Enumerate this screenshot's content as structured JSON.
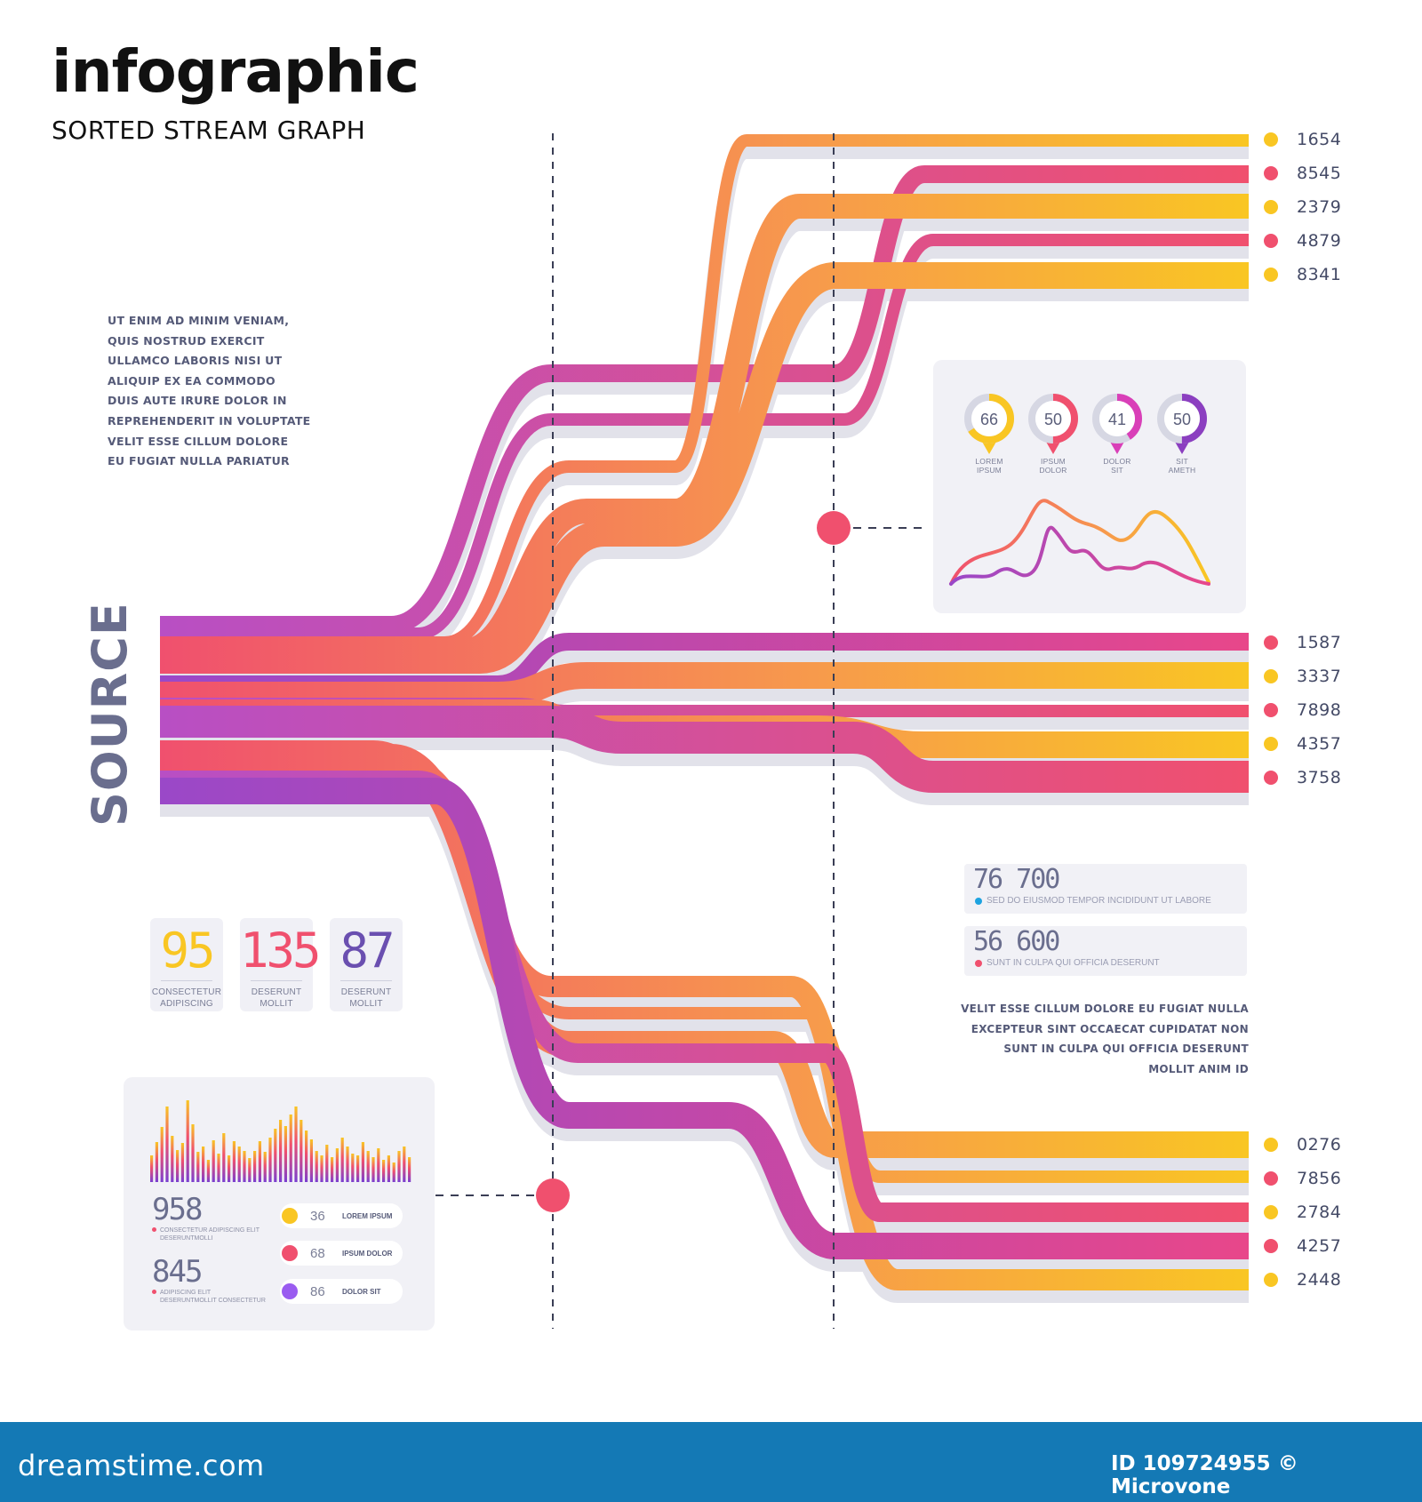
{
  "header": {
    "title": "infographic",
    "subtitle": "SORTED STREAM GRAPH"
  },
  "intro_text": [
    "UT ENIM AD MINIM VENIAM,",
    "QUIS NOSTRUD EXERCIT",
    "ULLAMCO LABORIS NISI UT",
    "ALIQUIP EX EA COMMODO",
    "DUIS AUTE IRURE DOLOR IN",
    "REPREHENDERIT IN VOLUPTATE",
    "VELIT ESSE CILLUM DOLORE",
    "EU FUGIAT NULLA PARIATUR"
  ],
  "source_label": "SOURCE",
  "colors": {
    "yellow": "#f9c623",
    "pink": "#f0506e",
    "purple": "#9a48c8",
    "magenta": "#d93fb8",
    "orange": "#f79a4c",
    "text_gray": "#6a6e8e",
    "footer": "#1479b5"
  },
  "legend_groups": [
    {
      "items": [
        {
          "value": "1654",
          "color": "yellow"
        },
        {
          "value": "8545",
          "color": "pink"
        },
        {
          "value": "2379",
          "color": "yellow"
        },
        {
          "value": "4879",
          "color": "pink"
        },
        {
          "value": "8341",
          "color": "yellow"
        }
      ]
    },
    {
      "items": [
        {
          "value": "1587",
          "color": "pink"
        },
        {
          "value": "3337",
          "color": "yellow"
        },
        {
          "value": "7898",
          "color": "pink"
        },
        {
          "value": "4357",
          "color": "yellow"
        },
        {
          "value": "3758",
          "color": "pink"
        }
      ]
    },
    {
      "items": [
        {
          "value": "0276",
          "color": "yellow"
        },
        {
          "value": "7856",
          "color": "pink"
        },
        {
          "value": "2784",
          "color": "yellow"
        },
        {
          "value": "4257",
          "color": "pink"
        },
        {
          "value": "2448",
          "color": "yellow"
        }
      ]
    }
  ],
  "gauges": [
    {
      "value": "66",
      "fraction": 0.66,
      "label": [
        "LOREM",
        "IPSUM"
      ],
      "color": "#f9c623"
    },
    {
      "value": "50",
      "fraction": 0.5,
      "label": [
        "IPSUM",
        "DOLOR"
      ],
      "color": "#f0506e"
    },
    {
      "value": "41",
      "fraction": 0.41,
      "label": [
        "DOLOR",
        "SIT"
      ],
      "color": "#d93fb8"
    },
    {
      "value": "50",
      "fraction": 0.5,
      "label": [
        "SIT",
        "AMETH"
      ],
      "color": "#8b3fc0"
    }
  ],
  "kpis": [
    {
      "value": "76 700",
      "caption": "SED DO EIUSMOD TEMPOR INCIDIDUNT UT LABORE",
      "color": "#1ea3e0"
    },
    {
      "value": "56 600",
      "caption": "SUNT IN CULPA QUI OFFICIA DESERUNT",
      "color": "#f0506e"
    }
  ],
  "right_text": [
    "VELIT ESSE CILLUM DOLORE EU FUGIAT NULLA",
    "EXCEPTEUR SINT OCCAECAT CUPIDATAT NON",
    "SUNT IN CULPA QUI OFFICIA DESERUNT",
    "MOLLIT ANIM ID"
  ],
  "stat_cards": [
    {
      "value": "95",
      "label": [
        "CONSECTETUR",
        "ADIPISCING"
      ],
      "color": "#f9c623"
    },
    {
      "value": "135",
      "label": [
        "DESERUNT",
        "MOLLIT"
      ],
      "color": "#f0506e"
    },
    {
      "value": "87",
      "label": [
        "DESERUNT",
        "MOLLIT"
      ],
      "color": "#6a4fb0"
    }
  ],
  "bottom_panel": {
    "metrics": [
      {
        "value": "958",
        "caption": [
          "CONSECTETUR ADIPISCING ELIT",
          "DESERUNTMOLLI"
        ]
      },
      {
        "value": "845",
        "caption": [
          "ADIPISCING ELIT",
          "DESERUNTMOLLIT CONSECTETUR"
        ]
      }
    ],
    "pills": [
      {
        "value": "36",
        "label": "LOREM IPSUM",
        "color": "#f9c623"
      },
      {
        "value": "68",
        "label": "IPSUM DOLOR",
        "color": "#f0506e"
      },
      {
        "value": "86",
        "label": "DOLOR SIT",
        "color": "#9a5cf0"
      }
    ]
  },
  "footer": {
    "brand": "dreamstime.com",
    "id": "ID 109724955 © Microvone"
  }
}
